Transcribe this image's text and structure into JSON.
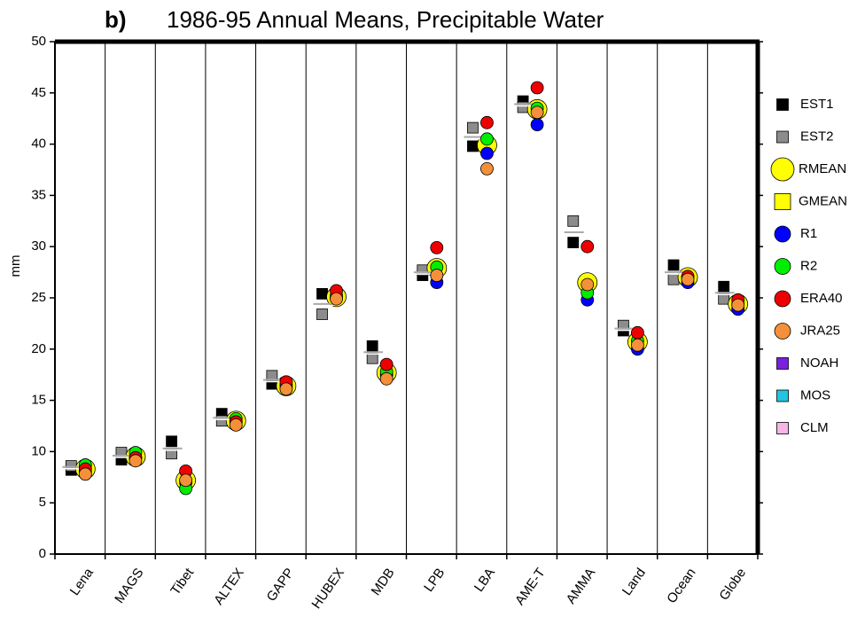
{
  "chart_data": {
    "type": "dot",
    "title_tag": "b)",
    "title": "1986-95 Annual Means, Precipitable Water",
    "y_label": "mm",
    "categories": [
      "Lena",
      "MAGS",
      "Tibet",
      "ALTEX",
      "GAPP",
      "HUBEX",
      "MDB",
      "LPB",
      "LBA",
      "AME-T",
      "AMMA",
      "Land",
      "Ocean",
      "Globe"
    ],
    "ylim": [
      0,
      50
    ],
    "yticks": [
      0,
      5,
      10,
      15,
      20,
      25,
      30,
      35,
      40,
      45,
      50
    ],
    "series": [
      {
        "name": "EST1",
        "color": "#000000",
        "marker": "square",
        "values": [
          8.2,
          9.2,
          11.0,
          13.7,
          16.6,
          25.4,
          20.3,
          27.2,
          39.8,
          44.2,
          30.4,
          21.8,
          28.2,
          26.1
        ]
      },
      {
        "name": "EST2",
        "color": "#8c8c8c",
        "marker": "square",
        "values": [
          8.6,
          9.9,
          9.8,
          13.0,
          17.4,
          23.4,
          19.1,
          27.7,
          41.6,
          43.6,
          32.5,
          22.3,
          26.8,
          24.9
        ]
      },
      {
        "name": "RMEAN",
        "color": "#ffff00",
        "marker": "circle",
        "values": [
          8.3,
          9.5,
          7.2,
          13.0,
          16.4,
          25.1,
          17.7,
          27.9,
          39.9,
          43.4,
          26.5,
          20.7,
          27.0,
          24.4
        ]
      },
      {
        "name": "GMEAN",
        "color": "#ffff00",
        "marker": "square",
        "values": [
          8.5,
          9.6,
          10.3,
          13.3,
          17.0,
          24.4,
          19.7,
          27.5,
          40.7,
          43.9,
          31.4,
          22.0,
          27.5,
          25.5
        ]
      },
      {
        "name": "R1",
        "color": "#0000ff",
        "marker": "circle",
        "values": [
          8.0,
          9.4,
          7.0,
          12.9,
          16.3,
          25.0,
          17.5,
          26.5,
          39.1,
          41.9,
          24.8,
          20.0,
          26.5,
          23.9
        ]
      },
      {
        "name": "R2",
        "color": "#00ee00",
        "marker": "circle",
        "values": [
          8.7,
          9.9,
          6.4,
          13.2,
          16.5,
          25.2,
          17.8,
          28.0,
          40.5,
          43.5,
          25.5,
          20.8,
          27.0,
          24.4
        ]
      },
      {
        "name": "ERA40",
        "color": "#ee0000",
        "marker": "circle",
        "values": [
          8.3,
          9.4,
          8.1,
          12.9,
          16.8,
          25.7,
          18.5,
          29.9,
          42.1,
          45.5,
          30.0,
          21.6,
          27.1,
          24.8
        ]
      },
      {
        "name": "JRA25",
        "color": "#f5903a",
        "marker": "circle",
        "values": [
          7.8,
          9.1,
          7.2,
          12.6,
          16.1,
          24.9,
          17.1,
          27.2,
          37.6,
          43.1,
          26.3,
          20.4,
          26.8,
          24.3
        ]
      },
      {
        "name": "NOAH",
        "color": "#7a1fdc",
        "marker": "square",
        "values": [
          null,
          null,
          null,
          null,
          null,
          null,
          null,
          null,
          null,
          null,
          null,
          null,
          null,
          null
        ]
      },
      {
        "name": "MOS",
        "color": "#22c4e0",
        "marker": "square",
        "values": [
          null,
          null,
          null,
          null,
          null,
          null,
          null,
          null,
          null,
          null,
          null,
          null,
          null,
          null
        ]
      },
      {
        "name": "CLM",
        "color": "#f7b5e8",
        "marker": "square",
        "values": [
          null,
          null,
          null,
          null,
          null,
          null,
          null,
          null,
          null,
          null,
          null,
          null,
          null,
          null
        ]
      }
    ]
  }
}
